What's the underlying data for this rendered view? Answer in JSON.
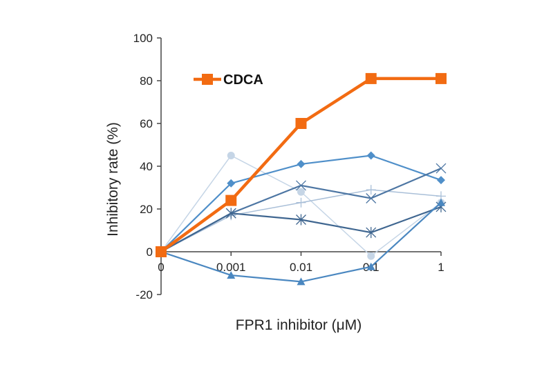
{
  "chart_data": {
    "type": "line",
    "xlabel": "FPR1 inhibitor (μM)",
    "ylabel": "Inhibitory rate (%)",
    "categories": [
      "0",
      "0.001",
      "0.01",
      "0.1",
      "1"
    ],
    "ylim": [
      -20,
      100
    ],
    "yticks": [
      "-20",
      "0",
      "20",
      "40",
      "60",
      "80",
      "100"
    ],
    "grid": false,
    "legend_position": "top-left",
    "series": [
      {
        "values": [
          0,
          45,
          28,
          -2,
          23
        ],
        "color": "#c5d5e6",
        "marker": "circle"
      },
      {
        "values": [
          0,
          17,
          23,
          29,
          26
        ],
        "color": "#a9bfd8",
        "marker": "plus"
      },
      {
        "values": [
          0,
          32,
          41,
          45,
          33.5
        ],
        "color": "#4f8fc9",
        "marker": "diamond"
      },
      {
        "values": [
          0,
          18,
          31,
          25,
          39
        ],
        "color": "#4d76a3",
        "marker": "x"
      },
      {
        "values": [
          0,
          18,
          15,
          9,
          21
        ],
        "color": "#3f6690",
        "marker": "asterisk"
      },
      {
        "values": [
          0,
          -11,
          -14,
          -7,
          23
        ],
        "color": "#4a87c0",
        "marker": "triangle"
      },
      {
        "name": "CDCA",
        "values": [
          0,
          24,
          60,
          81,
          81
        ],
        "color": "#f26b12",
        "marker": "square"
      }
    ]
  }
}
